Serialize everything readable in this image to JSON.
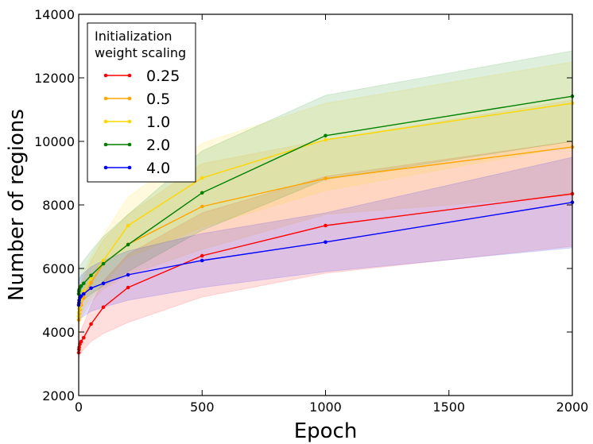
{
  "chart_data": {
    "type": "line",
    "title": "",
    "xlabel": "Epoch",
    "ylabel": "Number of regions",
    "xlim": [
      0,
      2000
    ],
    "ylim": [
      2000,
      14000
    ],
    "xticks": [
      0,
      500,
      1000,
      1500,
      2000
    ],
    "yticks": [
      2000,
      4000,
      6000,
      8000,
      10000,
      12000,
      14000
    ],
    "grid": false,
    "legend": {
      "title_line1": "Initialization",
      "title_line2": "weight scaling",
      "placement": "top-left"
    },
    "x": [
      0,
      1,
      2,
      5,
      10,
      20,
      50,
      100,
      200,
      500,
      1000,
      2000
    ],
    "series": [
      {
        "name": "0.25",
        "color": "#ff0000",
        "values": [
          3350,
          3450,
          3520,
          3620,
          3700,
          3820,
          4250,
          4780,
          5400,
          6400,
          7350,
          8350
        ],
        "lower": [
          3050,
          3150,
          3200,
          3280,
          3350,
          3450,
          3700,
          3950,
          4300,
          5100,
          5850,
          6700
        ],
        "upper": [
          3700,
          3800,
          3870,
          3980,
          4080,
          4250,
          4850,
          5600,
          6450,
          7750,
          8900,
          10000
        ]
      },
      {
        "name": "0.5",
        "color": "#ffa500",
        "values": [
          4380,
          4480,
          4580,
          4700,
          4850,
          5080,
          5550,
          6150,
          6760,
          7950,
          8830,
          9820
        ],
        "lower": [
          3950,
          4050,
          4150,
          4250,
          4380,
          4570,
          4950,
          5350,
          5800,
          6600,
          7700,
          8300
        ],
        "upper": [
          4800,
          4950,
          5050,
          5180,
          5350,
          5650,
          6250,
          6900,
          7700,
          9300,
          10050,
          11300
        ]
      },
      {
        "name": "1.0",
        "color": "#ffd700",
        "values": [
          4500,
          4620,
          4730,
          4850,
          5000,
          5280,
          5700,
          6250,
          7350,
          8850,
          10050,
          11200
        ],
        "lower": [
          4050,
          4150,
          4250,
          4380,
          4520,
          4750,
          5100,
          5500,
          6350,
          7300,
          8450,
          9850
        ],
        "upper": [
          5000,
          5150,
          5250,
          5380,
          5550,
          5850,
          6400,
          7050,
          8250,
          9950,
          11200,
          12500
        ]
      },
      {
        "name": "2.0",
        "color": "#008000",
        "values": [
          5200,
          5280,
          5330,
          5400,
          5450,
          5530,
          5780,
          6150,
          6750,
          8380,
          10180,
          11420
        ],
        "lower": [
          4700,
          4780,
          4830,
          4880,
          4930,
          5000,
          5200,
          5450,
          5900,
          7200,
          8800,
          10000
        ],
        "upper": [
          5900,
          5980,
          6030,
          6100,
          6150,
          6250,
          6550,
          7000,
          7700,
          9700,
          11450,
          12850
        ]
      },
      {
        "name": "4.0",
        "color": "#0000ff",
        "values": [
          4850,
          4920,
          5000,
          5080,
          5130,
          5200,
          5380,
          5530,
          5800,
          6250,
          6830,
          8080
        ],
        "lower": [
          4200,
          4270,
          4330,
          4400,
          4450,
          4500,
          4650,
          4780,
          5000,
          5400,
          5900,
          6650
        ],
        "upper": [
          5500,
          5570,
          5640,
          5720,
          5780,
          5850,
          6050,
          6250,
          6550,
          7100,
          7750,
          9500
        ]
      }
    ]
  }
}
